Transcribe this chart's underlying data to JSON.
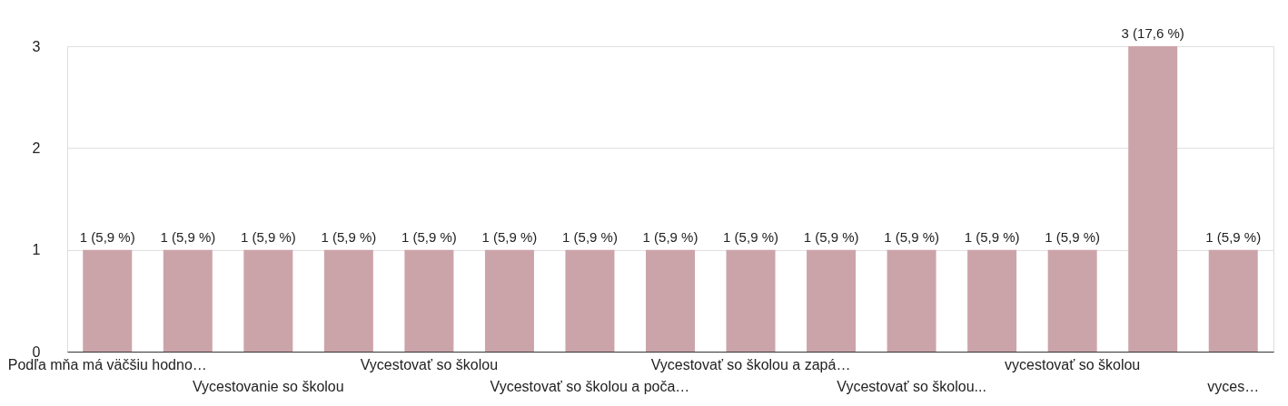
{
  "chart_data": {
    "type": "bar",
    "categories": [
      "Podľa mňa má väčšiu hodno…",
      null,
      "Vycestovanie so školou",
      null,
      "Vycestovať so školou",
      null,
      "Vycestovať so školou a poča…",
      null,
      "Vycestovať so školou a zapá…",
      null,
      "Vycestovať so školou...",
      null,
      "vycestovať so školou",
      null,
      "vyces…"
    ],
    "values": [
      1,
      1,
      1,
      1,
      1,
      1,
      1,
      1,
      1,
      1,
      1,
      1,
      1,
      3,
      1
    ],
    "value_labels": [
      "1 (5,9 %)",
      "1 (5,9 %)",
      "1 (5,9 %)",
      "1 (5,9 %)",
      "1 (5,9 %)",
      "1 (5,9 %)",
      "1 (5,9 %)",
      "1 (5,9 %)",
      "1 (5,9 %)",
      "1 (5,9 %)",
      "1 (5,9 %)",
      "1 (5,9 %)",
      "1 (5,9 %)",
      "3 (17,6 %)",
      "1 (5,9 %)"
    ],
    "color": "#cba4aa",
    "ylim": [
      0,
      3
    ],
    "yticks": [
      0,
      1,
      2,
      3
    ],
    "grid": "y"
  }
}
